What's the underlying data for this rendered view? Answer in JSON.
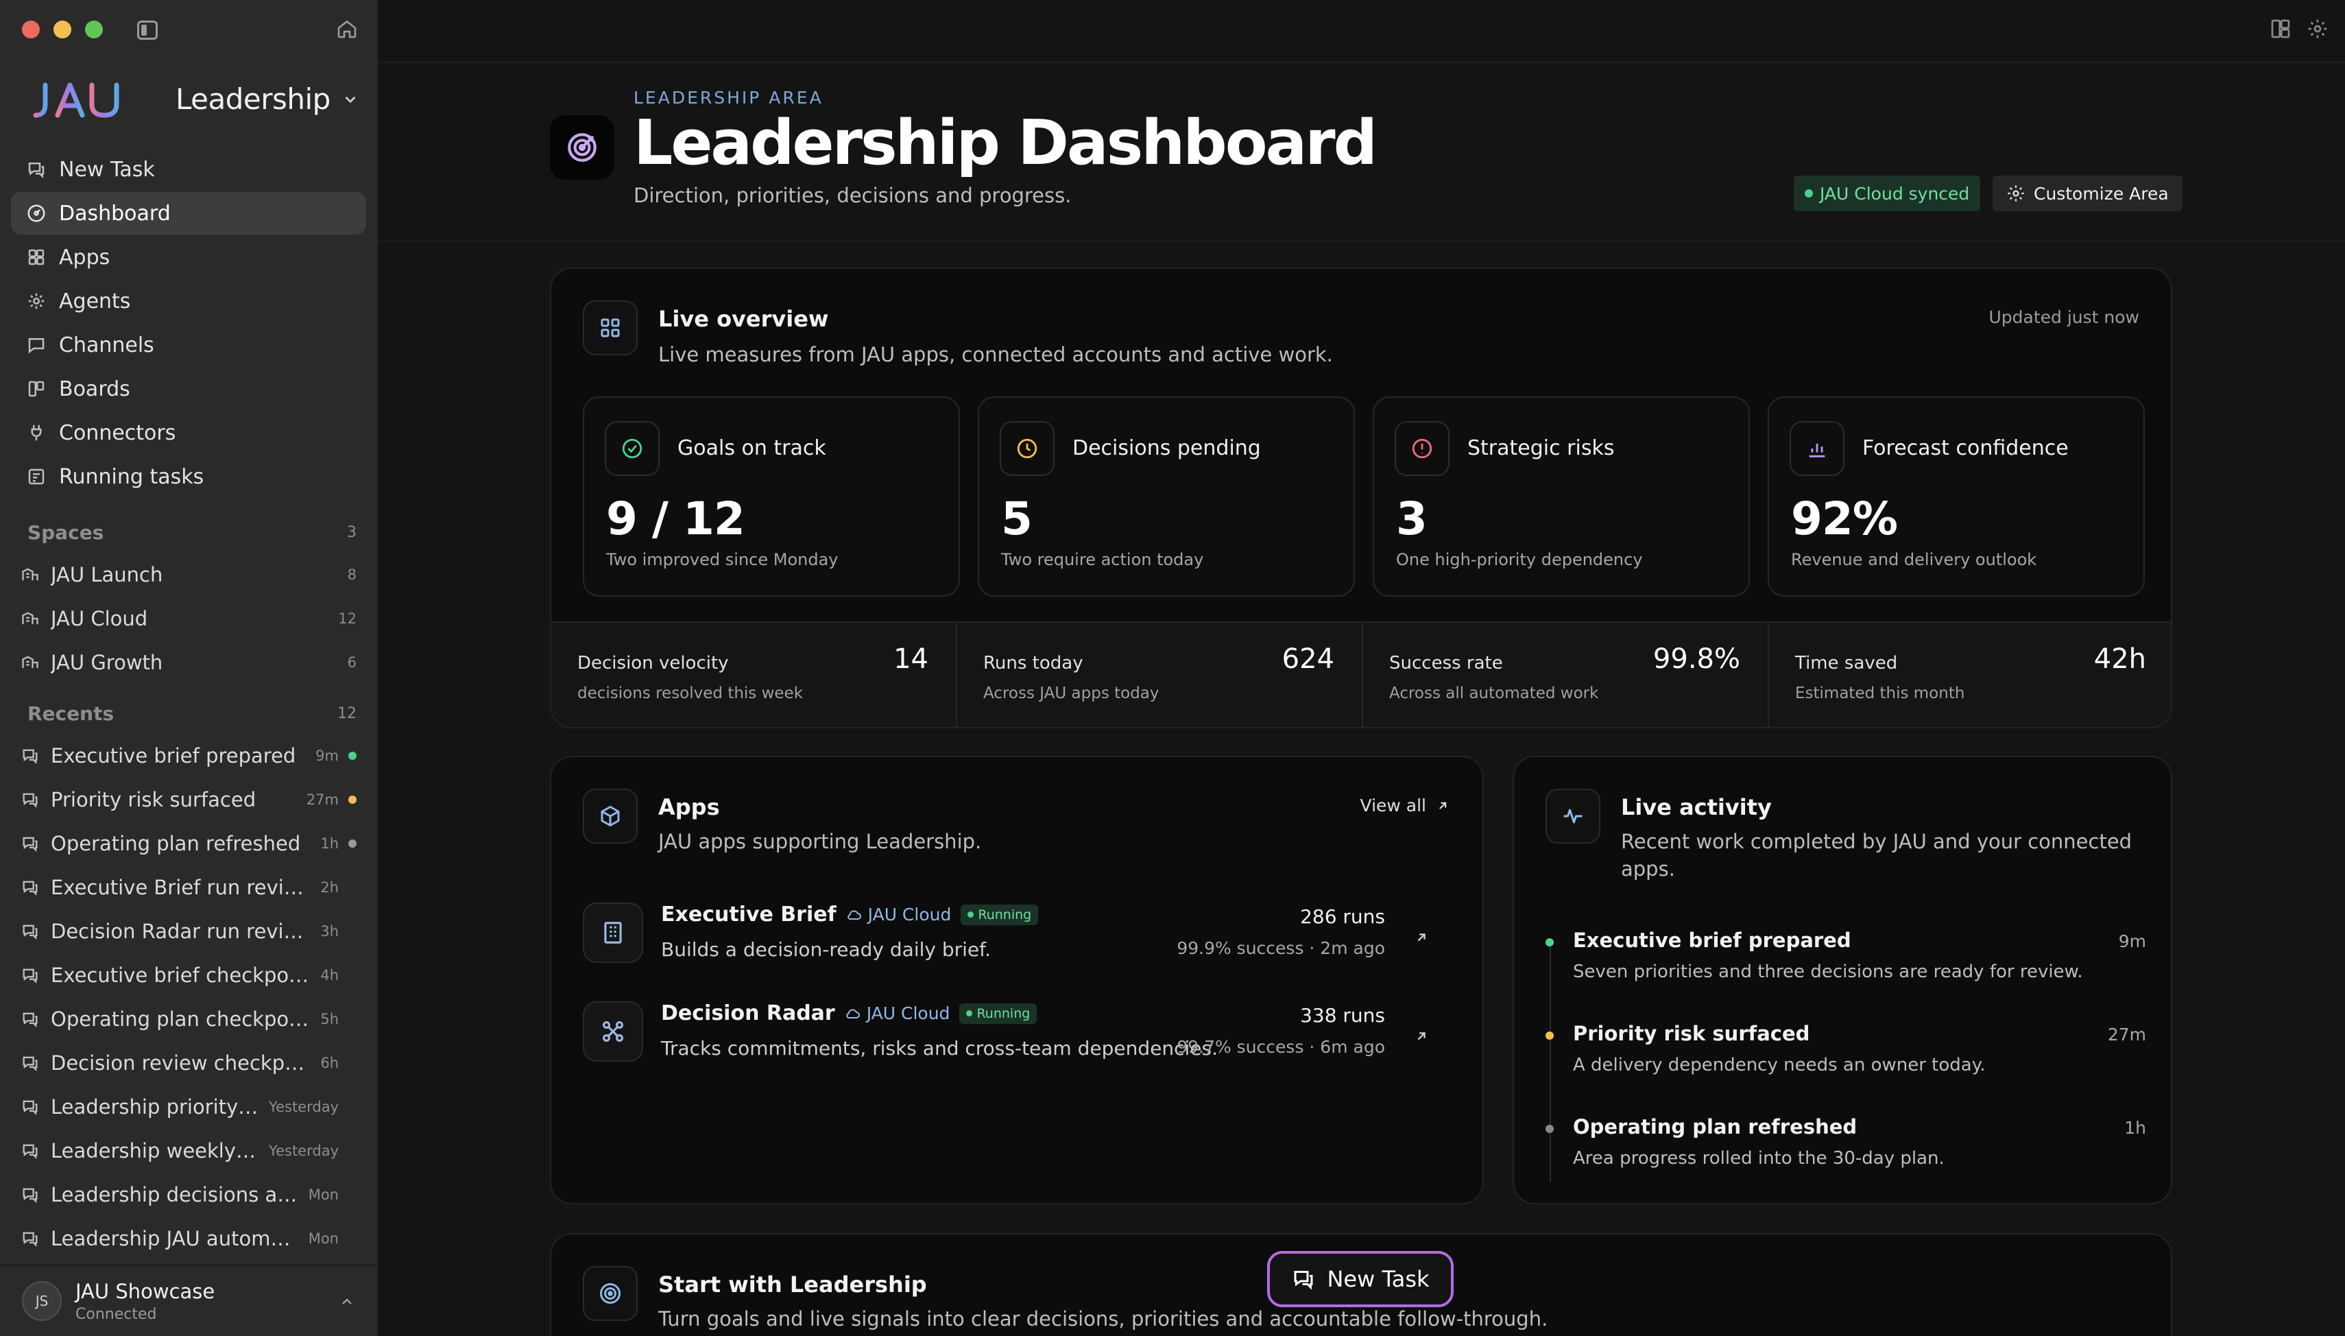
{
  "sidebar": {
    "brand": "JAU",
    "workspace": "Leadership",
    "nav": [
      {
        "label": "New Task",
        "icon": "chat-icon"
      },
      {
        "label": "Dashboard",
        "icon": "dashboard-icon"
      },
      {
        "label": "Apps",
        "icon": "apps-icon"
      },
      {
        "label": "Agents",
        "icon": "agents-icon"
      },
      {
        "label": "Channels",
        "icon": "channels-icon"
      },
      {
        "label": "Boards",
        "icon": "boards-icon"
      },
      {
        "label": "Connectors",
        "icon": "plug-icon"
      },
      {
        "label": "Running tasks",
        "icon": "tasks-icon"
      }
    ],
    "spaces_title": "Spaces",
    "spaces_count": "3",
    "spaces": [
      {
        "label": "JAU Launch",
        "count": "8"
      },
      {
        "label": "JAU Cloud",
        "count": "12"
      },
      {
        "label": "JAU Growth",
        "count": "6"
      }
    ],
    "recents_title": "Recents",
    "recents_count": "12",
    "recents": [
      {
        "label": "Executive brief prepared",
        "time": "9m",
        "dot": "#49D48A"
      },
      {
        "label": "Priority risk surfaced",
        "time": "27m",
        "dot": "#F5BF4F"
      },
      {
        "label": "Operating plan refreshed",
        "time": "1h",
        "dot": "#9a9a9a"
      },
      {
        "label": "Executive Brief run review",
        "time": "2h",
        "dot": ""
      },
      {
        "label": "Decision Radar run review",
        "time": "3h",
        "dot": ""
      },
      {
        "label": "Executive brief checkpoint",
        "time": "4h",
        "dot": ""
      },
      {
        "label": "Operating plan checkpoint",
        "time": "5h",
        "dot": ""
      },
      {
        "label": "Decision review checkpoint",
        "time": "6h",
        "dot": ""
      },
      {
        "label": "Leadership priority plan",
        "time": "Yesterday",
        "dot": ""
      },
      {
        "label": "Leadership weekly sco...",
        "time": "Yesterday",
        "dot": ""
      },
      {
        "label": "Leadership decisions and ...",
        "time": "Mon",
        "dot": ""
      },
      {
        "label": "Leadership JAU automation...",
        "time": "Mon",
        "dot": ""
      }
    ],
    "user": {
      "initials": "JS",
      "name": "JAU Showcase",
      "status": "Connected"
    }
  },
  "header": {
    "eyebrow": "LEADERSHIP AREA",
    "title": "Leadership Dashboard",
    "subtitle": "Direction, priorities, decisions and progress.",
    "synced": "JAU Cloud synced",
    "customize": "Customize Area"
  },
  "overview": {
    "title": "Live overview",
    "subtitle": "Live measures from JAU apps, connected accounts and active work.",
    "updated": "Updated just now",
    "metrics": [
      {
        "label": "Goals on track",
        "value": "9 / 12",
        "note": "Two improved since Monday",
        "icon": "check-circle-icon",
        "color": "#49D48A"
      },
      {
        "label": "Decisions pending",
        "value": "5",
        "note": "Two require action today",
        "icon": "clock-icon",
        "color": "#F5BF4F"
      },
      {
        "label": "Strategic risks",
        "value": "3",
        "note": "One high-priority dependency",
        "icon": "alert-icon",
        "color": "#F06B7A"
      },
      {
        "label": "Forecast confidence",
        "value": "92%",
        "note": "Revenue and delivery outlook",
        "icon": "bar-chart-icon",
        "color": "#B79BEF"
      }
    ],
    "stats": [
      {
        "label": "Decision velocity",
        "note": "decisions resolved this week",
        "value": "14"
      },
      {
        "label": "Runs today",
        "note": "Across JAU apps today",
        "value": "624"
      },
      {
        "label": "Success rate",
        "note": "Across all automated work",
        "value": "99.8%"
      },
      {
        "label": "Time saved",
        "note": "Estimated this month",
        "value": "42h"
      }
    ]
  },
  "apps": {
    "title": "Apps",
    "subtitle": "JAU apps supporting Leadership.",
    "view_all": "View all",
    "items": [
      {
        "name": "Executive Brief",
        "cloud": "JAU Cloud",
        "status": "Running",
        "desc": "Builds a decision-ready daily brief.",
        "runs": "286 runs",
        "success": "99.9% success · 2m ago"
      },
      {
        "name": "Decision Radar",
        "cloud": "JAU Cloud",
        "status": "Running",
        "desc": "Tracks commitments, risks and cross-team dependencies.",
        "runs": "338 runs",
        "success": "99.7% success · 6m ago"
      }
    ]
  },
  "activity": {
    "title": "Live activity",
    "subtitle_1": "Recent work completed by JAU and your connected",
    "subtitle_2": "apps.",
    "items": [
      {
        "title": "Executive brief prepared",
        "desc": "Seven priorities and three decisions are ready for review.",
        "time": "9m",
        "dot": "#49D48A"
      },
      {
        "title": "Priority risk surfaced",
        "desc": "A delivery dependency needs an owner today.",
        "time": "27m",
        "dot": "#F5BF4F"
      },
      {
        "title": "Operating plan refreshed",
        "desc": "Area progress rolled into the 30-day plan.",
        "time": "1h",
        "dot": "#8a8a8a"
      }
    ]
  },
  "start": {
    "title": "Start with Leadership",
    "subtitle": "Turn goals and live signals into clear decisions, priorities and accountable follow-through."
  },
  "new_task_button": "New Task"
}
